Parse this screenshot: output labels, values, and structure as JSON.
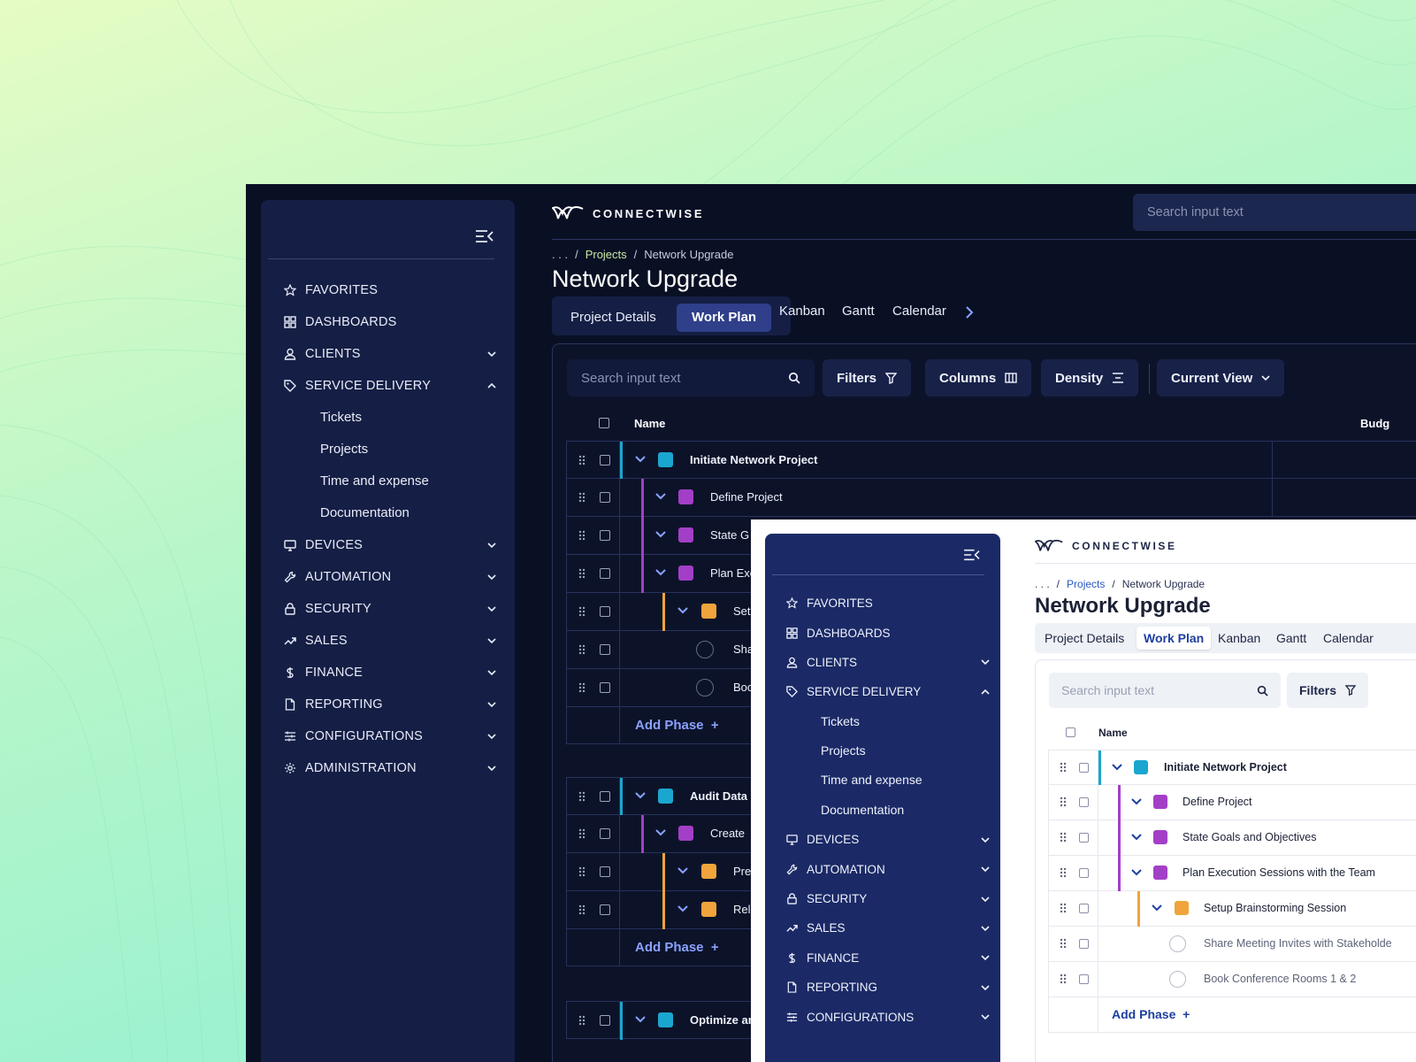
{
  "brand": {
    "name": "CONNECTWISE"
  },
  "colors": {
    "accent": "#2f3f8a",
    "phase": "#1aa6cf",
    "task": "#a33fc6",
    "subtask": "#f0a43b",
    "link_dark": "#c9e8a3",
    "link_light": "#2b59c3"
  },
  "nav": {
    "items": [
      {
        "label": "FAVORITES",
        "icon": "star-icon"
      },
      {
        "label": "DASHBOARDS",
        "icon": "grid-icon"
      },
      {
        "label": "CLIENTS",
        "icon": "user-icon"
      },
      {
        "label": "SERVICE DELIVERY",
        "icon": "tag-icon"
      },
      {
        "label": "DEVICES",
        "icon": "monitor-icon"
      },
      {
        "label": "AUTOMATION",
        "icon": "wrench-icon"
      },
      {
        "label": "SECURITY",
        "icon": "lock-icon"
      },
      {
        "label": "SALES",
        "icon": "trend-icon"
      },
      {
        "label": "FINANCE",
        "icon": "dollar-icon"
      },
      {
        "label": "REPORTING",
        "icon": "document-icon"
      },
      {
        "label": "CONFIGURATIONS",
        "icon": "sliders-icon"
      },
      {
        "label": "ADMINISTRATION",
        "icon": "gear-icon"
      }
    ],
    "service_delivery_sub": [
      "Tickets",
      "Projects",
      "Time and expense",
      "Documentation"
    ]
  },
  "search": {
    "placeholder": "Search input text"
  },
  "breadcrumb": {
    "ellipsis": ". . .",
    "sep": "/",
    "projects": "Projects",
    "current": "Network Upgrade"
  },
  "page": {
    "title": "Network Upgrade"
  },
  "tabs": [
    "Project Details",
    "Work Plan",
    "Kanban",
    "Gantt",
    "Calendar"
  ],
  "toolbar": {
    "search_placeholder": "Search input text",
    "filters": "Filters",
    "columns": "Columns",
    "density": "Density",
    "current_view": "Current View"
  },
  "table": {
    "col_name": "Name",
    "col_budget": "Budg"
  },
  "dark_rows": {
    "group1": [
      "Initiate Network Project",
      "Define Project",
      "State G",
      "Plan Exe",
      "Set",
      "Sha",
      "Boo"
    ],
    "group2": [
      "Audit Data",
      "Create ",
      "Pre",
      "Rel"
    ],
    "group3": [
      "Optimize ar"
    ]
  },
  "light_rows": [
    "Initiate Network Project",
    "Define Project",
    "State Goals and Objectives",
    "Plan Execution Sessions with the Team",
    "Setup Brainstorming Session",
    "Share Meeting Invites with Stakeholde",
    "Book Conference Rooms 1 & 2"
  ],
  "add_phase": "Add Phase",
  "add_plus": "+"
}
